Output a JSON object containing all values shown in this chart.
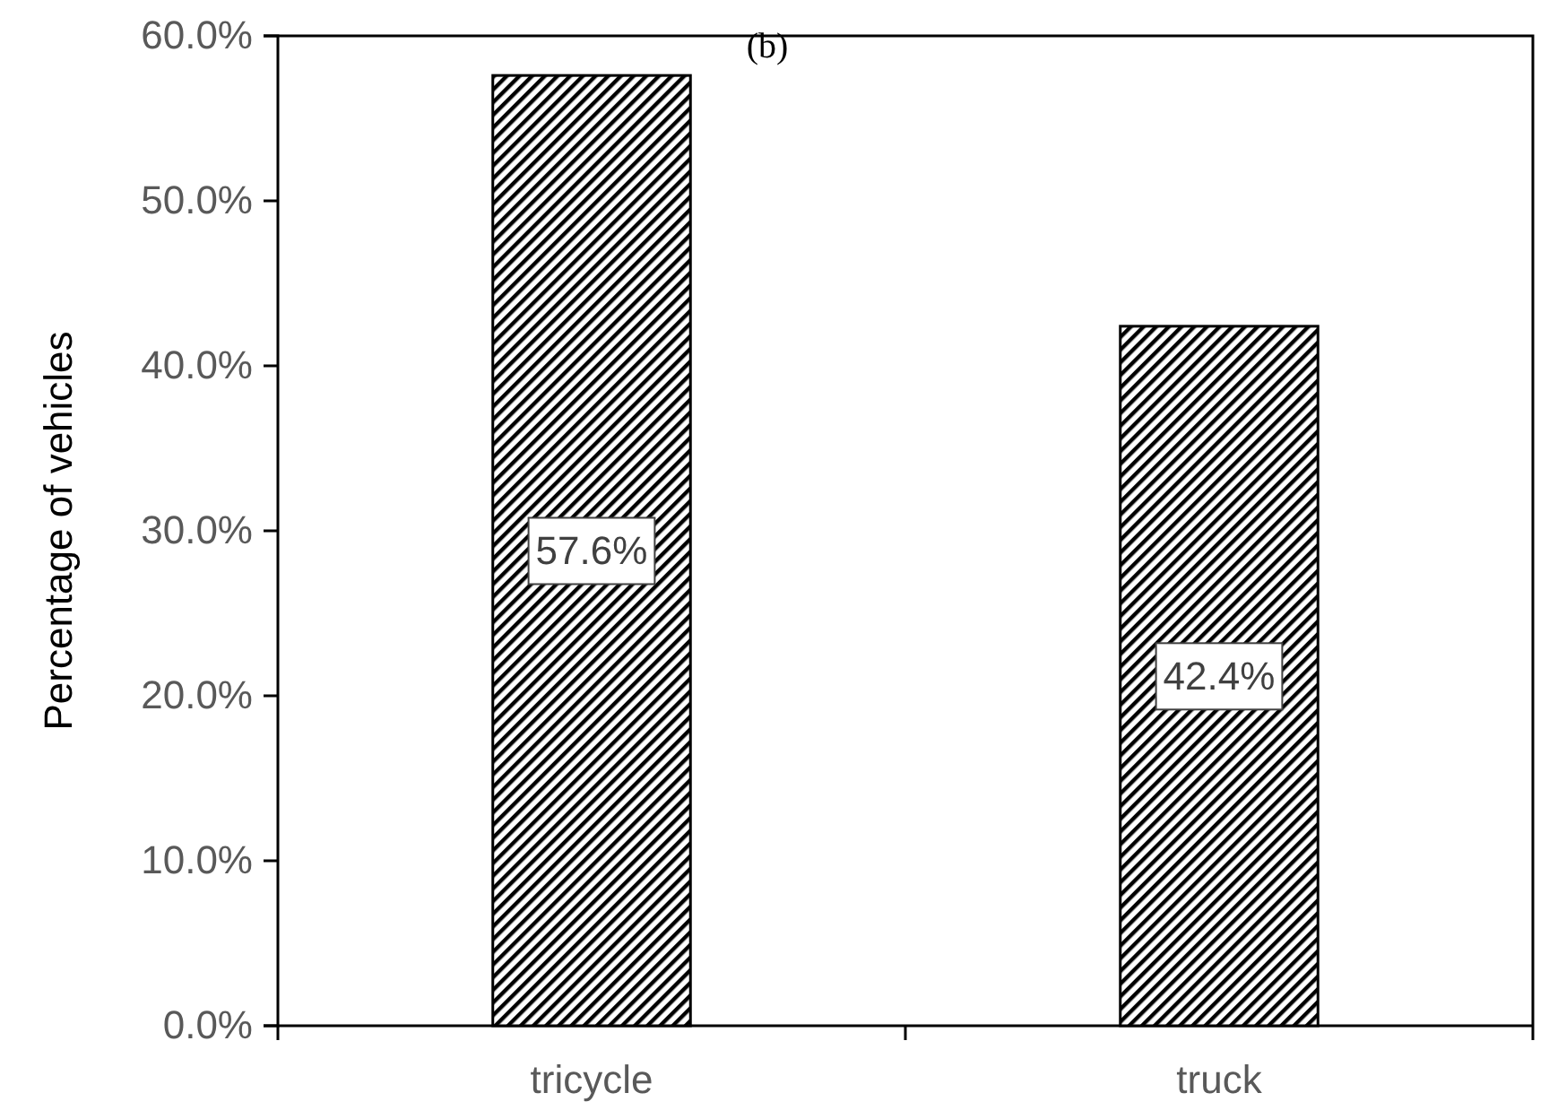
{
  "chart_data": {
    "type": "bar",
    "title": "(b)",
    "ylabel": "Percentage of vehicles",
    "categories": [
      "tricycle",
      "truck"
    ],
    "values": [
      57.6,
      42.4
    ],
    "value_labels": [
      "57.6%",
      "42.4%"
    ],
    "color": "#000000",
    "ylim": [
      0,
      60
    ],
    "yticks": [
      {
        "value": 0,
        "label": "0.0%"
      },
      {
        "value": 10,
        "label": "10.0%"
      },
      {
        "value": 20,
        "label": "20.0%"
      },
      {
        "value": 30,
        "label": "30.0%"
      },
      {
        "value": 40,
        "label": "40.0%"
      },
      {
        "value": 50,
        "label": "50.0%"
      },
      {
        "value": 60,
        "label": "60.0%"
      }
    ],
    "grid": false
  }
}
